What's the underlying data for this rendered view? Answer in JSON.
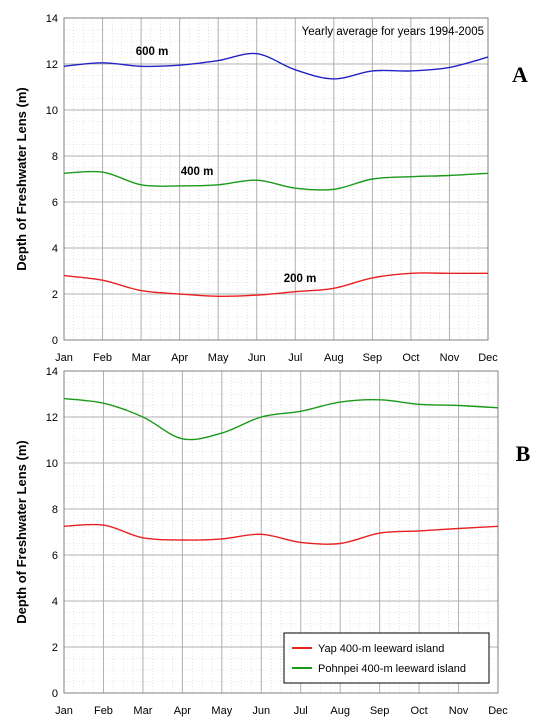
{
  "chart_data": [
    {
      "panel": "A",
      "type": "line",
      "title": "",
      "annotation": "Yearly average for years 1994-2005",
      "ylabel": "Depth of Freshwater Lens (m)",
      "xlabel": "",
      "categories": [
        "Jan",
        "Feb",
        "Mar",
        "Apr",
        "May",
        "Jun",
        "Jul",
        "Aug",
        "Sep",
        "Oct",
        "Nov",
        "Dec"
      ],
      "ylim": [
        0,
        14
      ],
      "yticks": [
        "0",
        "2",
        "4",
        "6",
        "8",
        "10",
        "12",
        "14"
      ],
      "grid": true,
      "series": [
        {
          "name": "600 m",
          "color": "#2323c8",
          "values": [
            11.9,
            12.05,
            11.9,
            11.95,
            12.15,
            12.45,
            11.75,
            11.35,
            11.7,
            11.7,
            11.85,
            12.3
          ]
        },
        {
          "name": "400 m",
          "color": "#1a9a1a",
          "values": [
            7.25,
            7.3,
            6.75,
            6.7,
            6.75,
            6.95,
            6.6,
            6.55,
            7.0,
            7.1,
            7.15,
            7.25
          ]
        },
        {
          "name": "200 m",
          "color": "#e82020",
          "values": [
            2.8,
            2.6,
            2.15,
            2.0,
            1.9,
            1.95,
            2.1,
            2.25,
            2.7,
            2.9,
            2.9,
            2.9
          ]
        }
      ]
    },
    {
      "panel": "B",
      "type": "line",
      "title": "",
      "ylabel": "Depth of Freshwater Lens (m)",
      "xlabel": "",
      "categories": [
        "Jan",
        "Feb",
        "Mar",
        "Apr",
        "May",
        "Jun",
        "Jul",
        "Aug",
        "Sep",
        "Oct",
        "Nov",
        "Dec"
      ],
      "ylim": [
        0,
        14
      ],
      "yticks": [
        "0",
        "2",
        "4",
        "6",
        "8",
        "10",
        "12",
        "14"
      ],
      "grid": true,
      "legend_position": "bottom-right",
      "series": [
        {
          "name": "Yap 400-m leeward island",
          "color": "#e82020",
          "values": [
            7.25,
            7.3,
            6.75,
            6.65,
            6.7,
            6.9,
            6.55,
            6.5,
            6.95,
            7.05,
            7.15,
            7.25
          ]
        },
        {
          "name": "Pohnpei 400-m leeward island",
          "color": "#1a9a1a",
          "values": [
            12.8,
            12.6,
            12.0,
            11.05,
            11.3,
            12.0,
            12.25,
            12.65,
            12.75,
            12.55,
            12.5,
            12.4
          ]
        }
      ]
    }
  ]
}
